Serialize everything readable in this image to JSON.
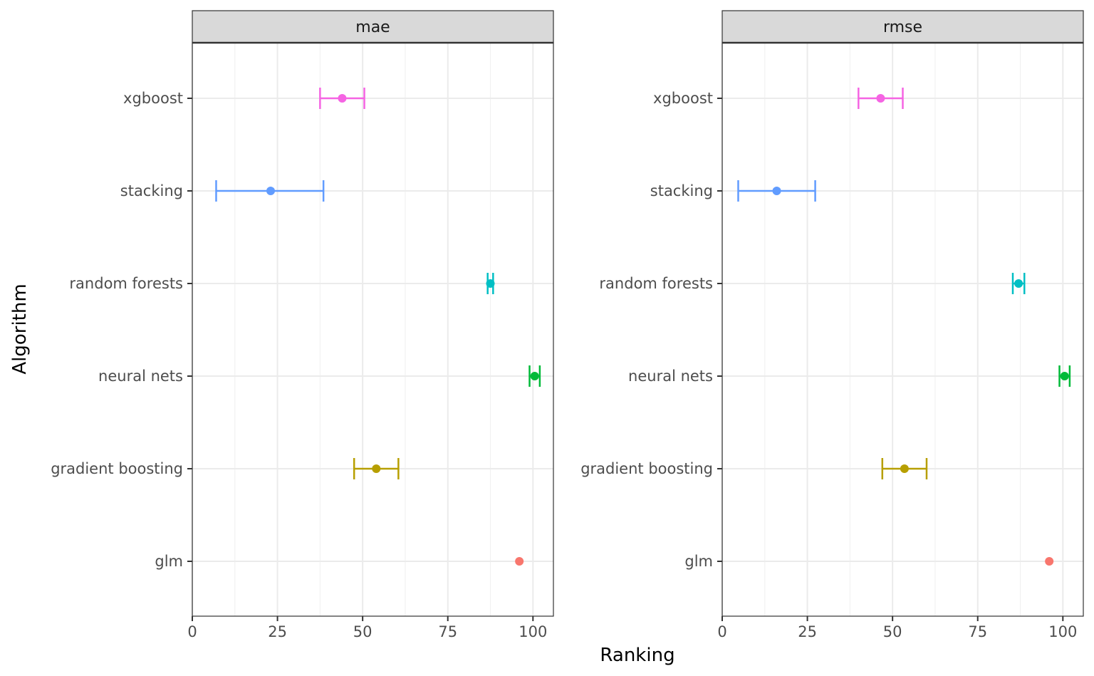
{
  "chart_data": {
    "type": "scatter",
    "subtype": "point-with-errorbars",
    "xlabel": "Ranking",
    "ylabel": "Algorithm",
    "xlim": [
      0,
      106
    ],
    "x_ticks": [
      "0",
      "25",
      "50",
      "75",
      "100"
    ],
    "x_tick_values": [
      0,
      25,
      50,
      75,
      100
    ],
    "categories": [
      "glm",
      "gradient boosting",
      "neural nets",
      "random forests",
      "stacking",
      "xgboost"
    ],
    "colors": {
      "glm": "#F8766D",
      "gradient boosting": "#B79F00",
      "neural nets": "#00BA38",
      "random forests": "#00BFC4",
      "stacking": "#619CFF",
      "xgboost": "#F564E3"
    },
    "grid": true,
    "theme": "bw",
    "panels": [
      {
        "strip": "mae",
        "points": [
          {
            "algorithm": "glm",
            "value": 96,
            "lower": null,
            "upper": null
          },
          {
            "algorithm": "gradient boosting",
            "value": 54,
            "lower": 47.5,
            "upper": 60.5
          },
          {
            "algorithm": "neural nets",
            "value": 100.5,
            "lower": 99,
            "upper": 102
          },
          {
            "algorithm": "random forests",
            "value": 87.5,
            "lower": 86.7,
            "upper": 88.3
          },
          {
            "algorithm": "stacking",
            "value": 23,
            "lower": 7,
            "upper": 38.5
          },
          {
            "algorithm": "xgboost",
            "value": 44,
            "lower": 37.5,
            "upper": 50.5
          }
        ]
      },
      {
        "strip": "rmse",
        "points": [
          {
            "algorithm": "glm",
            "value": 96,
            "lower": null,
            "upper": null
          },
          {
            "algorithm": "gradient boosting",
            "value": 53.5,
            "lower": 47,
            "upper": 60
          },
          {
            "algorithm": "neural nets",
            "value": 100.5,
            "lower": 99,
            "upper": 102
          },
          {
            "algorithm": "random forests",
            "value": 87,
            "lower": 85.3,
            "upper": 88.7
          },
          {
            "algorithm": "stacking",
            "value": 16,
            "lower": 4.7,
            "upper": 27.3
          },
          {
            "algorithm": "xgboost",
            "value": 46.5,
            "lower": 40,
            "upper": 53
          }
        ]
      }
    ]
  }
}
